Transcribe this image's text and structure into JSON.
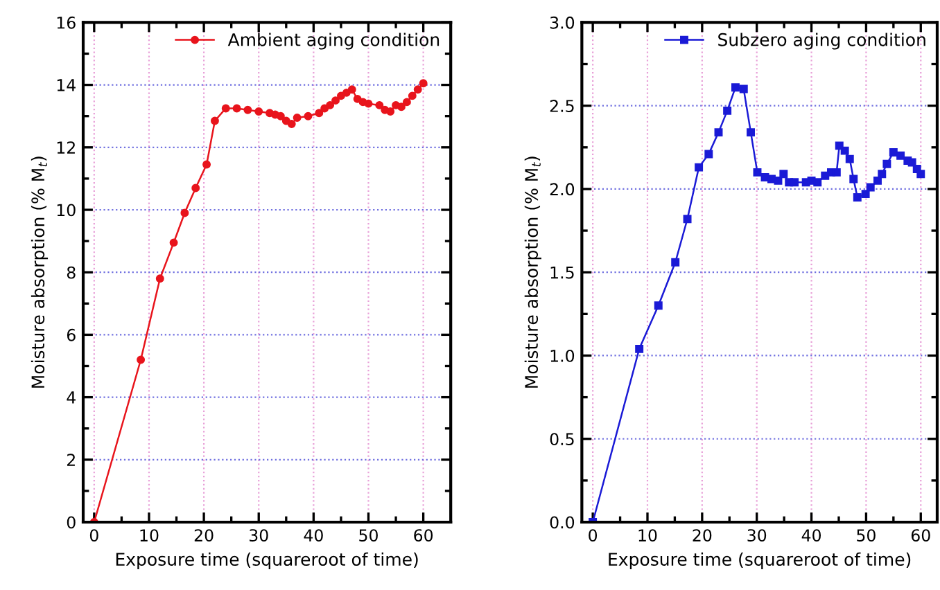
{
  "chart_data": [
    {
      "type": "line",
      "xlabel": "Exposure time (squareroot of time)",
      "ylabel": "Moisture absorption (% M$_{t}$)",
      "xlim": [
        -2,
        65
      ],
      "ylim": [
        0,
        16
      ],
      "xticks": [
        0,
        {
          "value": 5,
          "label": null
        },
        10,
        {
          "value": 15,
          "label": null
        },
        20,
        {
          "value": 25,
          "label": null
        },
        30,
        {
          "value": 35,
          "label": null
        },
        40,
        {
          "value": 45,
          "label": null
        },
        50,
        {
          "value": 55,
          "label": null
        },
        60
      ],
      "yticks": [
        0,
        {
          "value": 1,
          "label": null
        },
        2,
        {
          "value": 3,
          "label": null
        },
        4,
        {
          "value": 5,
          "label": null
        },
        6,
        {
          "value": 7,
          "label": null
        },
        8,
        {
          "value": 9,
          "label": null
        },
        10,
        {
          "value": 11,
          "label": null
        },
        12,
        {
          "value": 13,
          "label": null
        },
        14,
        {
          "value": 15,
          "label": null
        },
        16
      ],
      "grid": true,
      "legend": "top right",
      "marker": "circle",
      "line_style": "solid",
      "series": [
        {
          "name": "Ambient aging condition",
          "color": "#e8141c",
          "x": [
            0,
            8.5,
            12,
            14.5,
            16.5,
            18.5,
            20.5,
            22,
            24,
            26,
            28,
            30,
            32,
            33,
            34,
            35,
            36,
            37,
            39,
            41,
            42,
            43,
            44,
            45,
            46,
            47,
            48,
            49,
            50,
            52,
            53,
            54,
            55,
            56,
            57,
            58,
            59,
            60
          ],
          "values": [
            0,
            5.2,
            7.8,
            8.95,
            9.9,
            10.7,
            11.45,
            12.85,
            13.25,
            13.25,
            13.2,
            13.15,
            13.1,
            13.05,
            13.0,
            12.85,
            12.75,
            12.95,
            13.0,
            13.1,
            13.25,
            13.35,
            13.5,
            13.65,
            13.75,
            13.85,
            13.55,
            13.45,
            13.4,
            13.35,
            13.2,
            13.15,
            13.35,
            13.3,
            13.45,
            13.65,
            13.85,
            14.05
          ]
        }
      ]
    },
    {
      "type": "line",
      "xlabel": "Exposure time (squareroot of time)",
      "ylabel": "Moisture absorption (% M$_{t}$)",
      "xlim": [
        -2,
        63
      ],
      "ylim": [
        0,
        3
      ],
      "xticks": [
        0,
        {
          "value": 5,
          "label": null
        },
        10,
        {
          "value": 15,
          "label": null
        },
        20,
        {
          "value": 25,
          "label": null
        },
        30,
        {
          "value": 35,
          "label": null
        },
        40,
        {
          "value": 45,
          "label": null
        },
        50,
        {
          "value": 55,
          "label": null
        },
        60
      ],
      "yticks": [
        {
          "value": 0,
          "label": "0.0"
        },
        {
          "value": 0.25,
          "label": null
        },
        {
          "value": 0.5,
          "label": "0.5"
        },
        {
          "value": 0.75,
          "label": null
        },
        {
          "value": 1,
          "label": "1.0"
        },
        {
          "value": 1.25,
          "label": null
        },
        {
          "value": 1.5,
          "label": "1.5"
        },
        {
          "value": 1.75,
          "label": null
        },
        {
          "value": 2,
          "label": "2.0"
        },
        {
          "value": 2.25,
          "label": null
        },
        {
          "value": 2.5,
          "label": "2.5"
        },
        {
          "value": 2.75,
          "label": null
        },
        {
          "value": 3,
          "label": "3.0"
        }
      ],
      "grid": true,
      "legend": "top right",
      "marker": "square",
      "line_style": "solid",
      "series": [
        {
          "name": "Subzero aging condition",
          "color": "#1a1ad6",
          "x": [
            0,
            8.5,
            12,
            15.1,
            17.3,
            19.4,
            21.2,
            23.0,
            24.6,
            26.1,
            27.6,
            28.9,
            30.1,
            31.5,
            32.7,
            33.9,
            34.9,
            35.9,
            36.9,
            39.0,
            40.0,
            41.1,
            42.5,
            43.6,
            44.6,
            45.1,
            46.1,
            47.0,
            47.7,
            48.4,
            49.9,
            50.8,
            52.1,
            52.9,
            53.8,
            55.0,
            56.3,
            57.6,
            58.4,
            59.3,
            60.0
          ],
          "values": [
            0,
            1.04,
            1.3,
            1.56,
            1.82,
            2.13,
            2.21,
            2.34,
            2.47,
            2.61,
            2.6,
            2.34,
            2.1,
            2.07,
            2.06,
            2.05,
            2.09,
            2.04,
            2.04,
            2.04,
            2.05,
            2.04,
            2.08,
            2.1,
            2.1,
            2.26,
            2.23,
            2.18,
            2.06,
            1.95,
            1.97,
            2.01,
            2.05,
            2.09,
            2.15,
            2.22,
            2.2,
            2.17,
            2.16,
            2.12,
            2.09
          ]
        }
      ]
    }
  ]
}
